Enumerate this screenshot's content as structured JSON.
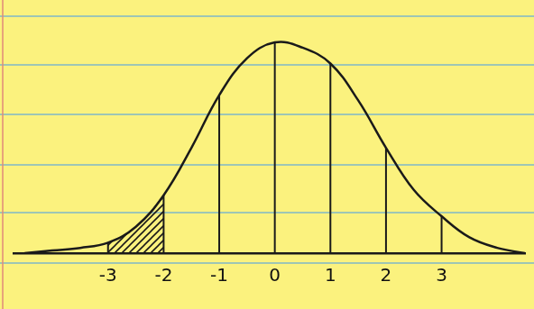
{
  "chart_data": {
    "type": "line",
    "x": [
      -4.5,
      -4,
      -3.5,
      -3,
      -2.5,
      -2,
      -1.5,
      -1,
      -0.5,
      0,
      0.5,
      1,
      1.5,
      2,
      2.5,
      3,
      3.5,
      4,
      4.5
    ],
    "values": [
      0.0,
      0.005,
      0.01,
      0.02,
      0.05,
      0.11,
      0.2,
      0.3,
      0.37,
      0.4,
      0.39,
      0.36,
      0.29,
      0.2,
      0.12,
      0.07,
      0.03,
      0.01,
      0.0
    ],
    "color": "#1a1a1a",
    "xlim": [
      -4.7,
      4.5
    ],
    "xticks": [
      -3,
      -2,
      -1,
      0,
      1,
      2,
      3
    ],
    "ylim": [
      0,
      0.46
    ],
    "tick_labels": "x",
    "grid": false,
    "shaded": {
      "from": -3,
      "to": -2
    }
  }
}
